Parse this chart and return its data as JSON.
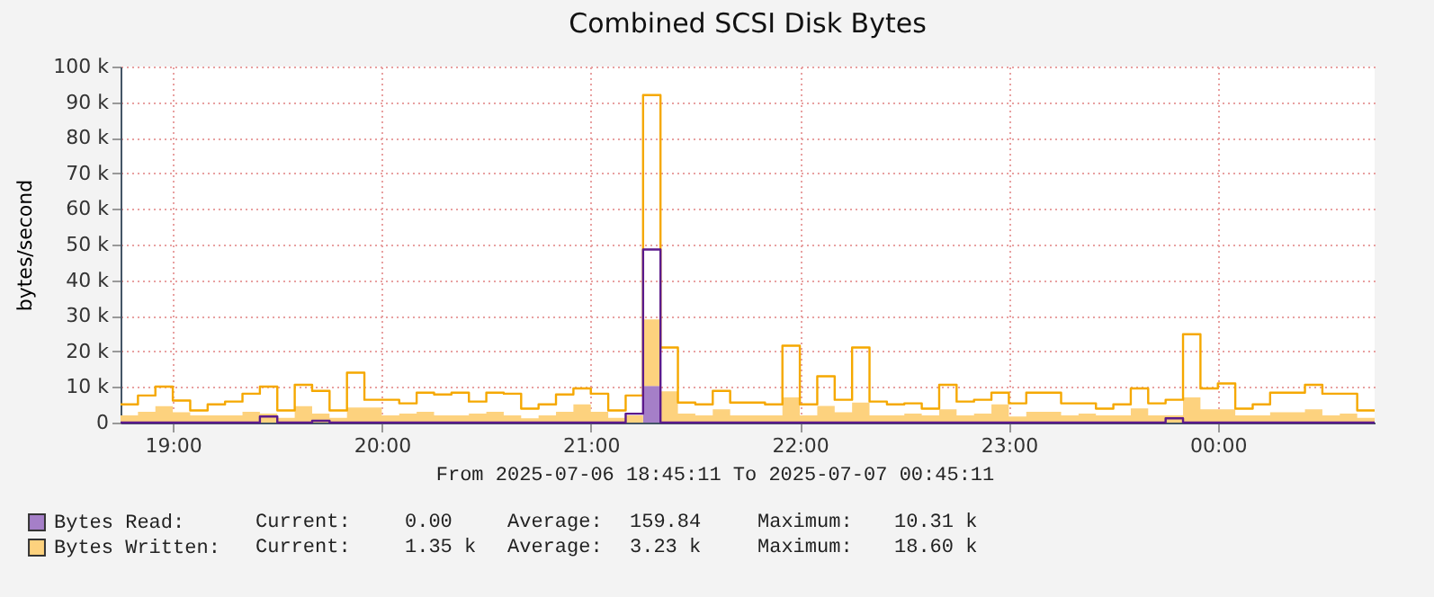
{
  "chart_data": {
    "type": "area",
    "title": "Combined SCSI Disk Bytes",
    "ylabel": "bytes/second",
    "stacked": true,
    "grid": true,
    "legend": "bottom left",
    "line_style": "solid",
    "marker": "none",
    "x": [
      "2025-07-06T18:45",
      "2025-07-06T18:50",
      "2025-07-06T18:55",
      "2025-07-06T19:00",
      "2025-07-06T19:05",
      "2025-07-06T19:10",
      "2025-07-06T19:15",
      "2025-07-06T19:20",
      "2025-07-06T19:25",
      "2025-07-06T19:30",
      "2025-07-06T19:35",
      "2025-07-06T19:40",
      "2025-07-06T19:45",
      "2025-07-06T19:50",
      "2025-07-06T19:55",
      "2025-07-06T20:00",
      "2025-07-06T20:05",
      "2025-07-06T20:10",
      "2025-07-06T20:15",
      "2025-07-06T20:20",
      "2025-07-06T20:25",
      "2025-07-06T20:30",
      "2025-07-06T20:35",
      "2025-07-06T20:40",
      "2025-07-06T20:45",
      "2025-07-06T20:50",
      "2025-07-06T20:55",
      "2025-07-06T21:00",
      "2025-07-06T21:05",
      "2025-07-06T21:10",
      "2025-07-06T21:15",
      "2025-07-06T21:20",
      "2025-07-06T21:25",
      "2025-07-06T21:30",
      "2025-07-06T21:35",
      "2025-07-06T21:40",
      "2025-07-06T21:45",
      "2025-07-06T21:50",
      "2025-07-06T21:55",
      "2025-07-06T22:00",
      "2025-07-06T22:05",
      "2025-07-06T22:10",
      "2025-07-06T22:15",
      "2025-07-06T22:20",
      "2025-07-06T22:25",
      "2025-07-06T22:30",
      "2025-07-06T22:35",
      "2025-07-06T22:40",
      "2025-07-06T22:45",
      "2025-07-06T22:50",
      "2025-07-06T22:55",
      "2025-07-06T23:00",
      "2025-07-06T23:05",
      "2025-07-06T23:10",
      "2025-07-06T23:15",
      "2025-07-06T23:20",
      "2025-07-06T23:25",
      "2025-07-06T23:30",
      "2025-07-06T23:35",
      "2025-07-06T23:40",
      "2025-07-06T23:45",
      "2025-07-06T23:50",
      "2025-07-06T23:55",
      "2025-07-07T00:00",
      "2025-07-07T00:05",
      "2025-07-07T00:10",
      "2025-07-07T00:15",
      "2025-07-07T00:20",
      "2025-07-07T00:25",
      "2025-07-07T00:30",
      "2025-07-07T00:35",
      "2025-07-07T00:40",
      "2025-07-07T00:45"
    ],
    "series": [
      {
        "name": "Bytes Read:",
        "type": "area",
        "color": "#a57fc8",
        "values": [
          0,
          0,
          0,
          0,
          0,
          0,
          0,
          0,
          0,
          0,
          0,
          0,
          0,
          0,
          0,
          0,
          0,
          0,
          0,
          0,
          0,
          0,
          0,
          0,
          0,
          0,
          0,
          0,
          0,
          0,
          10300,
          0,
          0,
          0,
          0,
          0,
          0,
          0,
          0,
          0,
          0,
          0,
          0,
          0,
          0,
          0,
          0,
          0,
          0,
          0,
          0,
          0,
          0,
          0,
          0,
          0,
          0,
          0,
          0,
          0,
          0,
          0,
          0,
          0,
          0,
          0,
          0,
          0,
          0,
          0,
          0,
          0,
          0
        ]
      },
      {
        "name": "Bytes Written:",
        "type": "area",
        "color": "#fdd27e",
        "values": [
          2000,
          3000,
          4600,
          2900,
          2000,
          2000,
          2000,
          3000,
          2500,
          1300,
          4600,
          2500,
          1300,
          4200,
          4200,
          2000,
          2500,
          3000,
          2000,
          2000,
          2500,
          3000,
          2000,
          1200,
          2000,
          3000,
          5100,
          3000,
          1300,
          2000,
          18700,
          8800,
          2500,
          2000,
          3700,
          2000,
          2000,
          2000,
          7100,
          2000,
          4700,
          2900,
          5600,
          2000,
          2000,
          2500,
          2000,
          3700,
          2000,
          2500,
          5100,
          1700,
          3000,
          3000,
          2000,
          2500,
          2000,
          2000,
          4000,
          2000,
          2000,
          7100,
          3700,
          3700,
          2000,
          2000,
          2900,
          2900,
          3700,
          2000,
          2500,
          1300,
          1300
        ]
      },
      {
        "type": "step",
        "color": "#f5a800",
        "values": [
          5100,
          7600,
          10100,
          6200,
          3400,
          5100,
          5900,
          8100,
          10100,
          3400,
          10600,
          8900,
          3400,
          14000,
          6400,
          6400,
          5400,
          8400,
          7900,
          8400,
          5900,
          8400,
          8100,
          3900,
          5100,
          7900,
          9600,
          8100,
          3400,
          7600,
          92000,
          21100,
          5600,
          5100,
          8900,
          5600,
          5600,
          5100,
          21600,
          5100,
          13000,
          6400,
          21100,
          5900,
          5100,
          5400,
          3900,
          10600,
          5900,
          6400,
          8400,
          5400,
          8400,
          8400,
          5400,
          5400,
          3900,
          5100,
          9600,
          5400,
          6400,
          24800,
          9600,
          11000,
          3900,
          5100,
          8400,
          8400,
          10600,
          8100,
          8100,
          3400,
          3400
        ]
      },
      {
        "type": "step",
        "color": "#5b1a8c",
        "values": [
          0,
          0,
          0,
          0,
          0,
          0,
          0,
          0,
          1700,
          0,
          0,
          500,
          0,
          0,
          0,
          0,
          0,
          0,
          0,
          0,
          0,
          0,
          0,
          0,
          0,
          0,
          0,
          0,
          0,
          2500,
          48600,
          0,
          0,
          0,
          0,
          0,
          0,
          0,
          0,
          0,
          0,
          0,
          0,
          0,
          0,
          0,
          0,
          0,
          0,
          0,
          0,
          0,
          0,
          0,
          0,
          0,
          0,
          0,
          0,
          0,
          1200,
          0,
          0,
          0,
          0,
          0,
          0,
          0,
          0,
          0,
          0,
          0,
          0
        ]
      }
    ],
    "xlim": [
      "2025-07-06T18:45",
      "2025-07-07T00:45"
    ],
    "xticks": [
      {
        "value": "2025-07-06T19:00",
        "label": "19:00"
      },
      {
        "value": "2025-07-06T20:00",
        "label": "20:00"
      },
      {
        "value": "2025-07-06T21:00",
        "label": "21:00"
      },
      {
        "value": "2025-07-06T22:00",
        "label": "22:00"
      },
      {
        "value": "2025-07-06T23:00",
        "label": "23:00"
      },
      {
        "value": "2025-07-07T00:00",
        "label": "00:00"
      }
    ],
    "ylim": [
      0,
      100000
    ],
    "yticks": [
      0,
      {
        "value": 10000,
        "label": "10 k"
      },
      {
        "value": 20000,
        "label": "20 k"
      },
      {
        "value": 30000,
        "label": "30 k"
      },
      {
        "value": 40000,
        "label": "40 k"
      },
      {
        "value": 50000,
        "label": "50 k"
      },
      {
        "value": 60000,
        "label": "60 k"
      },
      {
        "value": 70000,
        "label": "70 k"
      },
      {
        "value": 80000,
        "label": "80 k"
      },
      {
        "value": 90000,
        "label": "90 k"
      },
      {
        "value": 100000,
        "label": "100 k"
      }
    ],
    "annotations": [
      "From 2025-07-06 18:45:11 To 2025-07-07 00:45:11",
      "Current:",
      "0.00",
      "Average:",
      "159.84",
      "Maximum:",
      "10.31 k",
      "Current:",
      "1.35 k",
      "Average:",
      "3.23 k",
      "Maximum:",
      "18.60 k"
    ]
  }
}
